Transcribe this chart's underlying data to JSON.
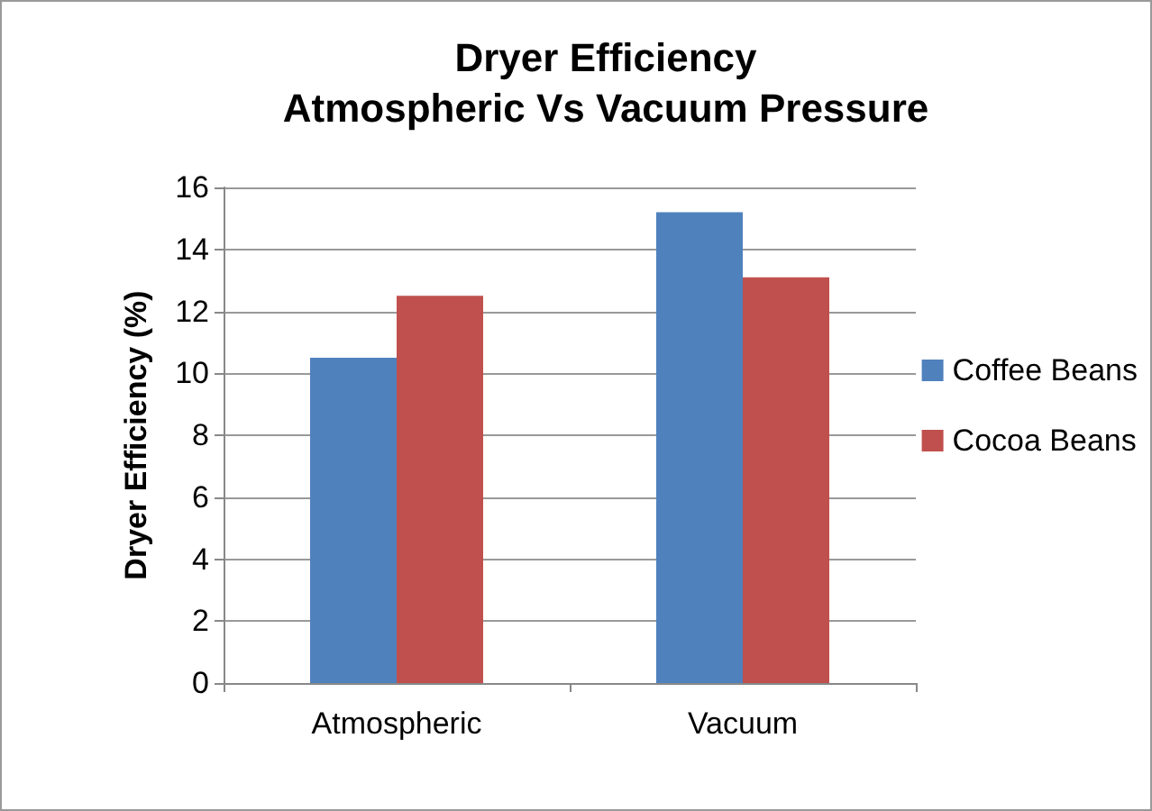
{
  "chart_data": {
    "type": "bar",
    "title": "Dryer Efficiency\nAtmospheric Vs Vacuum Pressure",
    "ylabel": "Dryer Efficiency (%)",
    "categories": [
      "Atmospheric",
      "Vacuum"
    ],
    "series": [
      {
        "name": "Coffee Beans",
        "color": "#4f81bd",
        "values": [
          10.5,
          15.2
        ]
      },
      {
        "name": "Cocoa Beans",
        "color": "#c0504d",
        "values": [
          12.5,
          13.1
        ]
      }
    ],
    "ylim": [
      0,
      16
    ],
    "yticks": [
      0,
      2,
      4,
      6,
      8,
      10,
      12,
      14,
      16
    ],
    "grid": "y",
    "legend": "right"
  }
}
